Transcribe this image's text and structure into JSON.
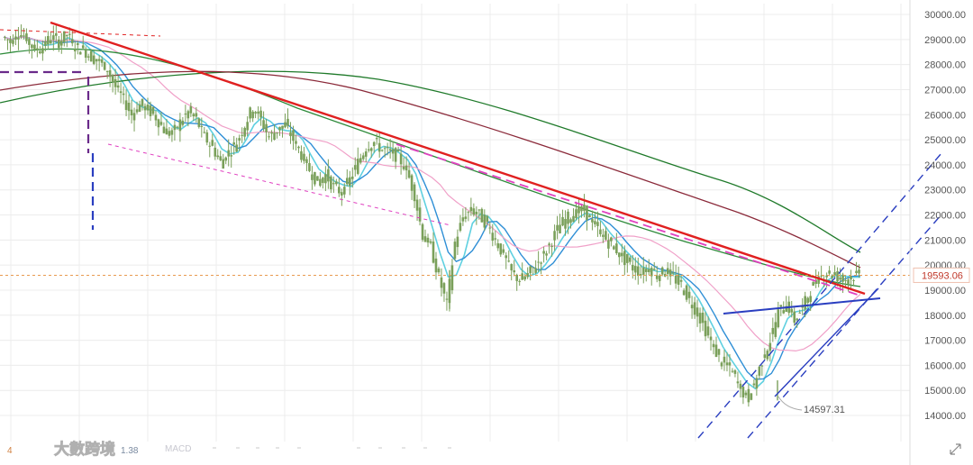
{
  "chart_data": {
    "type": "candlestick",
    "ylim": [
      13500,
      30300
    ],
    "y_ticks": [
      30000,
      29000,
      28000,
      27000,
      26000,
      25000,
      24000,
      23000,
      22000,
      21000,
      20000,
      19000,
      18000,
      17000,
      16000,
      15000,
      14000
    ],
    "y_tick_labels": [
      "30000.00",
      "29000.00",
      "28000.00",
      "27000.00",
      "26000.00",
      "25000.00",
      "24000.00",
      "23000.00",
      "22000.00",
      "21000.00",
      "20000.00",
      "19000.00",
      "18000.00",
      "17000.00",
      "16000.00",
      "15000.00",
      "14000.00"
    ],
    "current_price": 19593.06,
    "current_price_label": "19593.06",
    "low_price": 14597.31,
    "low_price_label": "14597.31",
    "grid": true,
    "close_path": [
      29100,
      28900,
      29300,
      29000,
      28600,
      28700,
      29100,
      28900,
      29200,
      28700,
      28600,
      28300,
      28100,
      27800,
      27100,
      26600,
      26000,
      26400,
      26200,
      25900,
      25400,
      25200,
      25700,
      26100,
      25800,
      25100,
      24700,
      24100,
      24500,
      24900,
      25600,
      26300,
      25800,
      25100,
      25400,
      25600,
      25000,
      24400,
      23800,
      23300,
      23600,
      23100,
      22900,
      23400,
      24100,
      24700,
      24900,
      24600,
      24500,
      24300,
      23800,
      22800,
      21200,
      20700,
      19500,
      18400,
      20900,
      21900,
      22200,
      22000,
      21600,
      21000,
      20400,
      19700,
      19400,
      19600,
      20000,
      20400,
      21000,
      21600,
      21900,
      22100,
      22200,
      21700,
      21300,
      20900,
      20600,
      20200,
      19900,
      19700,
      19900,
      19600,
      19800,
      19500,
      19200,
      18600,
      18100,
      17400,
      16700,
      16100,
      15900,
      15300,
      14700,
      15200,
      16200,
      17000,
      18100,
      18500,
      17800,
      18300,
      19000,
      19500,
      19700,
      19600,
      19400,
      19550,
      19593
    ]
  },
  "indicators": {
    "panel_label": "MACD",
    "ma_value_prefix": "4",
    "ma_value_suffix": "1.38"
  },
  "watermark": {
    "text": "大數跨境"
  },
  "colors": {
    "bg": "#ffffff",
    "grid": "#ececec",
    "candle": "#7aa05a",
    "ma_fast": "#2f8fd6",
    "ma_cyan": "#5fd0e0",
    "ma_pink": "#f0a0c8",
    "ma_green": "#2d8a3a",
    "ma_maroon": "#8b2a3a",
    "ma_darkgreen": "#1f7a2a",
    "trend_red": "#e02020",
    "trend_magenta": "#e040c0",
    "channel_blue": "#2a3ec0",
    "price_line": "#e89a50",
    "dash_purple": "#6a2a8a"
  }
}
